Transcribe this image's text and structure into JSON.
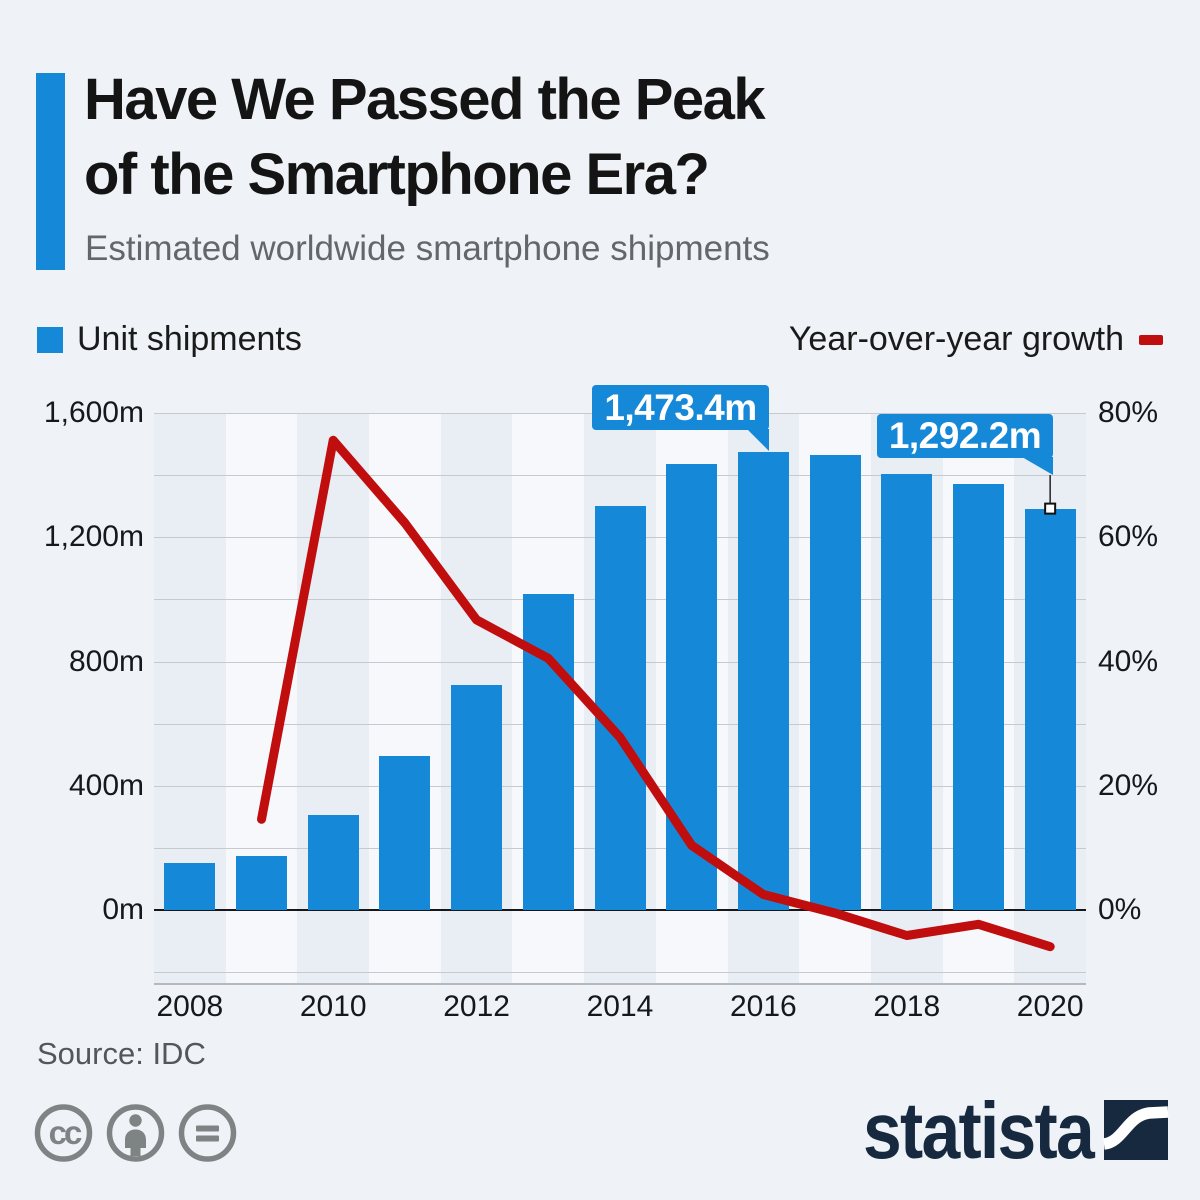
{
  "header": {
    "title_line1": "Have We Passed the Peak",
    "title_line2": "of the Smartphone Era?",
    "subtitle": "Estimated worldwide smartphone shipments"
  },
  "legend": {
    "unit_shipments": "Unit shipments",
    "yoy_growth": "Year-over-year growth"
  },
  "chart_data": {
    "type": "combo-bar-line",
    "categories": [
      2008,
      2009,
      2010,
      2011,
      2012,
      2013,
      2014,
      2015,
      2016,
      2017,
      2018,
      2019,
      2020
    ],
    "series": [
      {
        "name": "Unit shipments",
        "type": "bar",
        "unit": "million units",
        "color": "#1588d8",
        "values": [
          151.4,
          173.5,
          304.7,
          494.5,
          725.3,
          1018.7,
          1301.7,
          1437.2,
          1473.4,
          1465.5,
          1404.9,
          1372.6,
          1292.2
        ]
      },
      {
        "name": "Year-over-year growth",
        "type": "line",
        "unit": "%",
        "color": "#c00d0d",
        "values": [
          null,
          14.6,
          75.6,
          62.3,
          46.7,
          40.5,
          27.8,
          10.4,
          2.5,
          -0.5,
          -4.1,
          -2.3,
          -5.9
        ]
      }
    ],
    "left_axis": {
      "unit": "m",
      "tick_labels": [
        "1,600m",
        "1,200m",
        "800m",
        "400m",
        "0m"
      ],
      "tick_values": [
        1600,
        1200,
        800,
        400,
        0
      ],
      "min": 0,
      "max": 1600,
      "grid_step": 200,
      "plot_min": -200
    },
    "right_axis": {
      "unit": "%",
      "tick_labels": [
        "80%",
        "60%",
        "40%",
        "20%",
        "0%"
      ],
      "tick_values": [
        80,
        60,
        40,
        20,
        0
      ],
      "min": 0,
      "max": 80
    },
    "x_axis": {
      "tick_labels": [
        "2008",
        "2010",
        "2012",
        "2014",
        "2016",
        "2018",
        "2020"
      ]
    },
    "annotations": [
      {
        "year": 2016,
        "label": "1,473.4m"
      },
      {
        "year": 2020,
        "label": "1,292.2m"
      }
    ],
    "grid": "horizontal gridlines every 200m / 10%, alternating vertical bands on even years",
    "legend_position": "top"
  },
  "footer": {
    "source": "Source: IDC",
    "brand": "statista",
    "license_icons": [
      "cc-icon",
      "cc-by-icon",
      "cc-nd-icon"
    ]
  },
  "colors": {
    "blue": "#1588d8",
    "red": "#c00d0d",
    "navy": "#16293e",
    "band_even": "#e9edf4",
    "band_odd": "#f6f8fb",
    "grid": "#c6c9ce",
    "zero_line": "#15171a",
    "page_bg": "#eff3f8",
    "cc_gray": "#7e8383"
  }
}
